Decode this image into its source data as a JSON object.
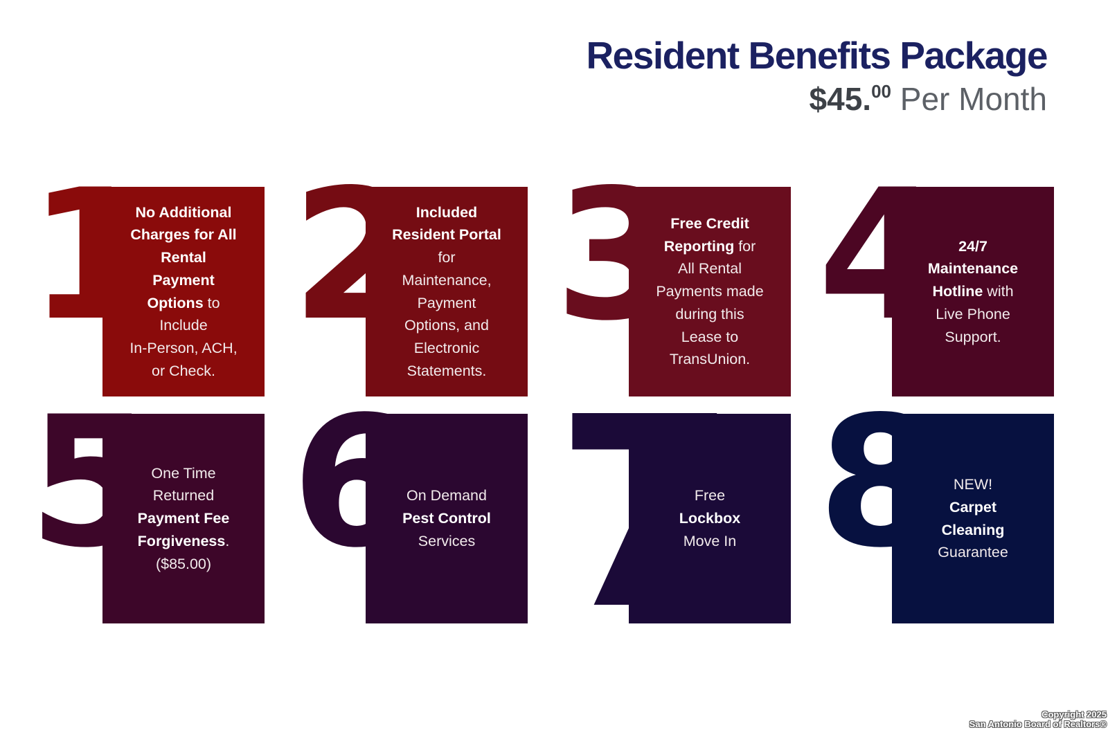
{
  "header": {
    "title": "Resident Benefits Package",
    "price": {
      "amount": "$45.",
      "cents": "00",
      "per": " Per Month"
    },
    "title_color": "#1b2161",
    "price_amount_color": "#3d4147",
    "price_per_color": "#5c6066"
  },
  "cards": [
    {
      "number": "1",
      "color": "#8a0b0b",
      "segments": [
        {
          "text": "No Additional\nCharges for All\nRental\nPayment\nOptions",
          "bold": true
        },
        {
          "text": " to\nInclude\nIn-Person, ACH,\nor Check.",
          "bold": false
        }
      ]
    },
    {
      "number": "2",
      "color": "#750c13",
      "segments": [
        {
          "text": "Included\nResident Portal",
          "bold": true
        },
        {
          "text": "\nfor\nMaintenance,\nPayment\nOptions, and\nElectronic\nStatements.",
          "bold": false
        }
      ]
    },
    {
      "number": "3",
      "color": "#690d1e",
      "segments": [
        {
          "text": "Free Credit\nReporting",
          "bold": true
        },
        {
          "text": " for\nAll Rental\nPayments made\nduring this\nLease to\nTransUnion.",
          "bold": false
        }
      ]
    },
    {
      "number": "4",
      "color": "#4c0623",
      "segments": [
        {
          "text": "24/7\nMaintenance\nHotline",
          "bold": true
        },
        {
          "text": " with\nLive Phone\nSupport.",
          "bold": false
        }
      ]
    },
    {
      "number": "5",
      "color": "#3d0629",
      "segments": [
        {
          "text": "One Time\nReturned\n",
          "bold": false
        },
        {
          "text": "Payment Fee\nForgiveness",
          "bold": true
        },
        {
          "text": ".\n($85.00)",
          "bold": false
        }
      ]
    },
    {
      "number": "6",
      "color": "#2b0730",
      "segments": [
        {
          "text": "On Demand\n",
          "bold": false
        },
        {
          "text": "Pest Control",
          "bold": true
        },
        {
          "text": "\nServices",
          "bold": false
        }
      ]
    },
    {
      "number": "7",
      "color": "#1b0a38",
      "segments": [
        {
          "text": "Free\n",
          "bold": false
        },
        {
          "text": "Lockbox",
          "bold": true
        },
        {
          "text": "\nMove In",
          "bold": false
        }
      ]
    },
    {
      "number": "8",
      "color": "#071140",
      "segments": [
        {
          "text": "NEW!\n",
          "bold": false
        },
        {
          "text": "Carpet\nCleaning",
          "bold": true
        },
        {
          "text": "\nGuarantee",
          "bold": false
        }
      ]
    }
  ],
  "footer": {
    "line1": "Copyright 2025",
    "line2": "San Antonio Board of Realtors®"
  }
}
